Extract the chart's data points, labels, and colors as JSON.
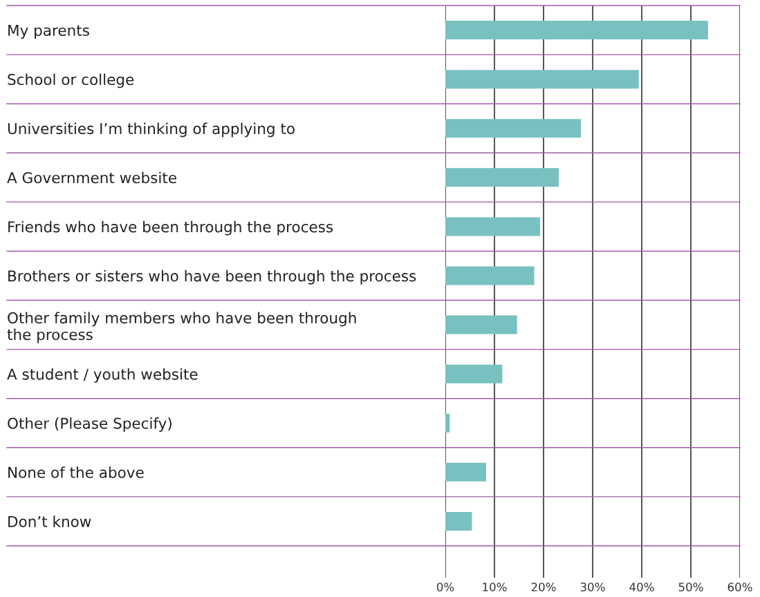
{
  "chart_data": {
    "type": "bar",
    "orientation": "horizontal",
    "categories": [
      "My parents",
      "School or college",
      "Universities I’m thinking of applying to",
      "A Government website",
      "Friends who have been through the process",
      "Brothers or sisters who have been through the process",
      "Other family members who have been through\nthe process",
      "A student / youth website",
      "Other (Please Specify)",
      "None of the above",
      "Don’t know"
    ],
    "values": [
      53.5,
      39.4,
      27.6,
      23.1,
      19.3,
      18.1,
      14.6,
      11.6,
      0.9,
      8.3,
      5.4
    ],
    "color": "#79c0c1",
    "xlim": [
      0,
      60
    ],
    "xticks": [
      {
        "value": 0,
        "label": "0%"
      },
      {
        "value": 10,
        "label": "10%"
      },
      {
        "value": 20,
        "label": "20%"
      },
      {
        "value": 30,
        "label": "30%"
      },
      {
        "value": 40,
        "label": "40%"
      },
      {
        "value": 50,
        "label": "50%"
      },
      {
        "value": 60,
        "label": "60%"
      }
    ],
    "grid": "x",
    "legend": false
  }
}
